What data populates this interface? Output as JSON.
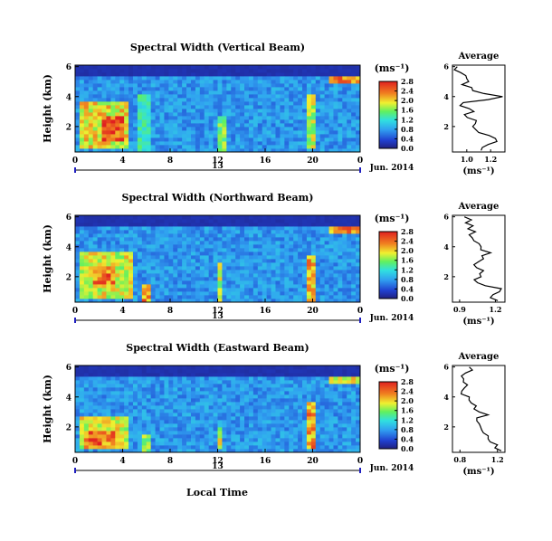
{
  "figure": {
    "xlabel": "Local Time",
    "date_label": "Jun. 2014",
    "day_label": "13",
    "colorbar_unit": "(ms⁻¹)",
    "avg_title": "Average",
    "avg_xlabel": "(ms⁻¹)",
    "ylabel": "Height (km)"
  },
  "chart_data": [
    {
      "type": "heatmap",
      "title": "Spectral Width (Vertical Beam)",
      "ylabel": "Height (km)",
      "xticks": [
        "0",
        "4",
        "8",
        "12",
        "16",
        "20",
        "0"
      ],
      "yticks": [
        "2",
        "4",
        "6"
      ],
      "ylim": [
        0.3,
        6.1
      ],
      "xlim": [
        0,
        24
      ],
      "colorbar_ticks": [
        "0.0",
        "0.4",
        "0.8",
        "1.2",
        "1.6",
        "2.0",
        "2.4",
        "2.8"
      ],
      "colorbar_range": [
        0,
        2.8
      ],
      "hot_regions": [
        {
          "t": [
            0.2,
            4.6
          ],
          "h": [
            0.6,
            3.8
          ],
          "v": 2.1
        },
        {
          "t": [
            2.2,
            4.2
          ],
          "h": [
            1.0,
            2.6
          ],
          "v": 2.8
        },
        {
          "t": [
            5.2,
            6.2
          ],
          "h": [
            0.4,
            4.2
          ],
          "v": 1.4
        },
        {
          "t": [
            12.0,
            12.6
          ],
          "h": [
            0.4,
            2.6
          ],
          "v": 1.7
        },
        {
          "t": [
            19.6,
            20.4
          ],
          "h": [
            0.5,
            4.2
          ],
          "v": 1.9
        },
        {
          "t": [
            21.5,
            24.0
          ],
          "h": [
            5.0,
            6.1
          ],
          "v": 2.4
        },
        {
          "t": [
            0.0,
            24.0
          ],
          "h": [
            5.4,
            6.1
          ],
          "v": 0.2
        }
      ],
      "avg_profile": {
        "x_ticks": [
          "1.0",
          "1.2"
        ],
        "xlim": [
          0.88,
          1.32
        ],
        "y_ticks": [
          "2",
          "4",
          "6"
        ],
        "ylim": [
          0.3,
          6.1
        ],
        "height": [
          0.4,
          0.8,
          1.2,
          1.6,
          2.0,
          2.4,
          2.8,
          3.2,
          3.6,
          4.0,
          4.4,
          4.8,
          5.2,
          5.6,
          6.0
        ],
        "value": [
          1.12,
          1.18,
          1.24,
          1.1,
          1.05,
          1.08,
          0.98,
          1.02,
          0.97,
          1.3,
          1.05,
          0.96,
          1.0,
          0.95,
          0.92
        ]
      }
    },
    {
      "type": "heatmap",
      "title": "Spectral Width (Northward Beam)",
      "ylabel": "Height (km)",
      "xticks": [
        "0",
        "4",
        "8",
        "12",
        "16",
        "20",
        "0"
      ],
      "yticks": [
        "2",
        "4",
        "6"
      ],
      "ylim": [
        0.3,
        6.1
      ],
      "xlim": [
        0,
        24
      ],
      "colorbar_ticks": [
        "0.0",
        "0.4",
        "0.8",
        "1.2",
        "1.6",
        "2.0",
        "2.4",
        "2.8"
      ],
      "colorbar_range": [
        0,
        2.8
      ],
      "hot_regions": [
        {
          "t": [
            0.2,
            4.8
          ],
          "h": [
            0.5,
            3.6
          ],
          "v": 2.0
        },
        {
          "t": [
            1.5,
            3.5
          ],
          "h": [
            1.5,
            2.8
          ],
          "v": 2.6
        },
        {
          "t": [
            5.5,
            6.2
          ],
          "h": [
            0.4,
            1.6
          ],
          "v": 2.4
        },
        {
          "t": [
            12.0,
            12.5
          ],
          "h": [
            0.4,
            3.0
          ],
          "v": 1.9
        },
        {
          "t": [
            19.5,
            20.3
          ],
          "h": [
            0.4,
            3.5
          ],
          "v": 2.3
        },
        {
          "t": [
            21.5,
            24.0
          ],
          "h": [
            5.0,
            6.1
          ],
          "v": 2.5
        },
        {
          "t": [
            0.0,
            24.0
          ],
          "h": [
            5.4,
            6.1
          ],
          "v": 0.2
        }
      ],
      "avg_profile": {
        "x_ticks": [
          "0.9",
          "1.2"
        ],
        "xlim": [
          0.84,
          1.28
        ],
        "y_ticks": [
          "2",
          "4",
          "6"
        ],
        "ylim": [
          0.3,
          6.1
        ],
        "height": [
          0.4,
          0.8,
          1.2,
          1.6,
          2.0,
          2.4,
          2.8,
          3.2,
          3.6,
          4.0,
          4.4,
          4.8,
          5.2,
          5.6,
          6.0
        ],
        "value": [
          1.22,
          1.18,
          1.25,
          1.05,
          1.08,
          1.1,
          1.02,
          1.1,
          1.16,
          1.08,
          1.02,
          0.98,
          0.97,
          0.95,
          0.94
        ]
      }
    },
    {
      "type": "heatmap",
      "title": "Spectral Width (Eastward Beam)",
      "ylabel": "Height (km)",
      "xticks": [
        "0",
        "4",
        "8",
        "12",
        "16",
        "20",
        "0"
      ],
      "yticks": [
        "2",
        "4",
        "6"
      ],
      "ylim": [
        0.3,
        6.1
      ],
      "xlim": [
        0,
        24
      ],
      "colorbar_ticks": [
        "0.0",
        "0.4",
        "0.8",
        "1.2",
        "1.6",
        "2.0",
        "2.4",
        "2.8"
      ],
      "colorbar_range": [
        0,
        2.8
      ],
      "hot_regions": [
        {
          "t": [
            0.2,
            4.5
          ],
          "h": [
            0.5,
            2.8
          ],
          "v": 2.0
        },
        {
          "t": [
            0.8,
            3.2
          ],
          "h": [
            0.5,
            1.8
          ],
          "v": 2.6
        },
        {
          "t": [
            5.5,
            6.2
          ],
          "h": [
            0.4,
            1.6
          ],
          "v": 1.8
        },
        {
          "t": [
            12.0,
            12.5
          ],
          "h": [
            0.5,
            2.0
          ],
          "v": 2.0
        },
        {
          "t": [
            19.4,
            20.3
          ],
          "h": [
            0.5,
            3.6
          ],
          "v": 2.4
        },
        {
          "t": [
            21.5,
            24.0
          ],
          "h": [
            5.0,
            6.1
          ],
          "v": 2.0
        },
        {
          "t": [
            0.0,
            24.0
          ],
          "h": [
            5.4,
            6.1
          ],
          "v": 0.2
        }
      ],
      "avg_profile": {
        "x_ticks": [
          "0.8",
          "1.2"
        ],
        "xlim": [
          0.72,
          1.28
        ],
        "y_ticks": [
          "2",
          "4",
          "6"
        ],
        "ylim": [
          0.3,
          6.1
        ],
        "height": [
          0.4,
          0.8,
          1.2,
          1.6,
          2.0,
          2.4,
          2.8,
          3.2,
          3.6,
          4.0,
          4.4,
          4.8,
          5.2,
          5.6,
          6.0
        ],
        "value": [
          1.24,
          1.2,
          1.1,
          1.05,
          1.02,
          0.98,
          1.1,
          0.95,
          0.92,
          0.9,
          0.82,
          0.88,
          0.84,
          0.86,
          0.9
        ]
      }
    }
  ]
}
